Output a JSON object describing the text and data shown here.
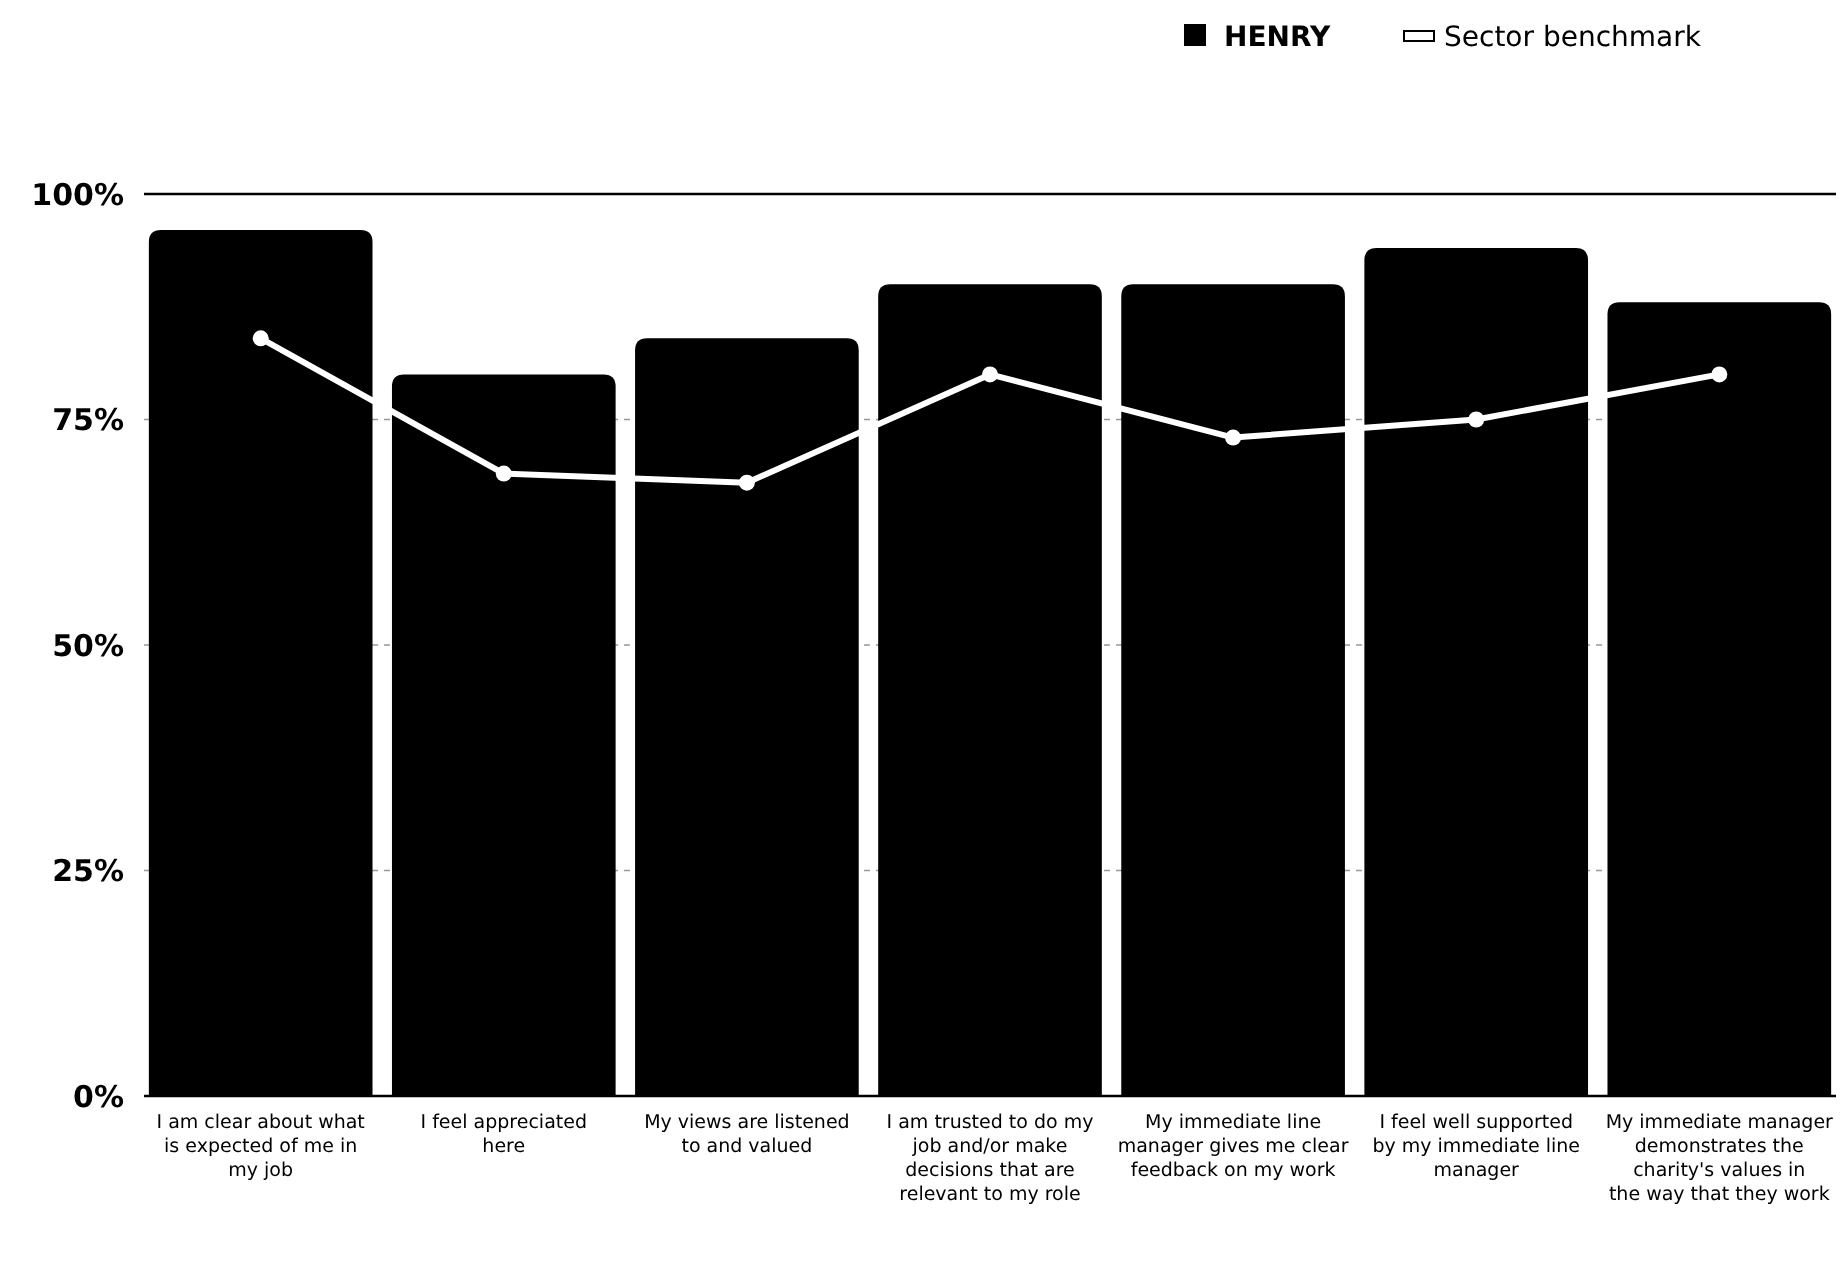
{
  "chart_data": {
    "type": "bar",
    "categories": [
      "I am clear about what is expected of me in my job",
      "I feel appreciated here",
      "My views are listened to and valued",
      "I am trusted to do my job and/or make decisions that are relevant to my role",
      "My immediate line manager gives me clear feedback on my work",
      "I feel well supported by my immediate line manager",
      "My immediate manager demonstrates the charity's values in the way that they work"
    ],
    "series": [
      {
        "name": "HENRY",
        "color": "#000000",
        "values": [
          96,
          80,
          84,
          90,
          90,
          94,
          88
        ]
      },
      {
        "name": "Sector benchmark",
        "type": "line",
        "color": "#ffffff",
        "values": [
          84,
          69,
          68,
          80,
          73,
          75,
          80
        ]
      }
    ],
    "ylim": [
      0,
      100
    ],
    "yticks": [
      {
        "value": 0,
        "label": "0%"
      },
      {
        "value": 25,
        "label": "25%"
      },
      {
        "value": 50,
        "label": "50%"
      },
      {
        "value": 75,
        "label": "75%"
      },
      {
        "value": 100,
        "label": "100%"
      }
    ],
    "grid": "y",
    "legend": "top right",
    "marker": "circle"
  }
}
